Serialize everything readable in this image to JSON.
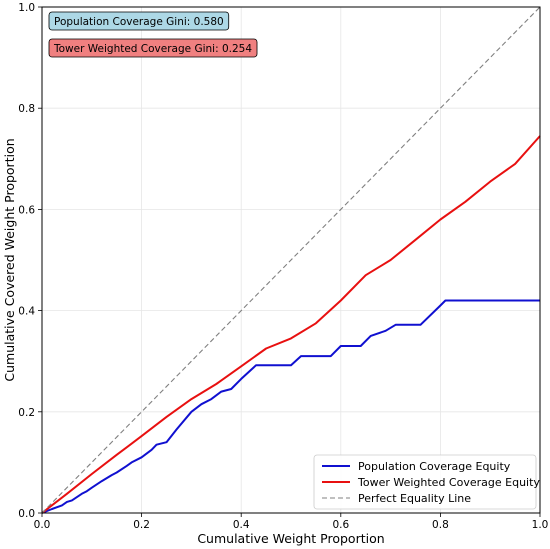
{
  "chart_data": {
    "type": "line",
    "xlabel": "Cumulative Weight Proportion",
    "ylabel": "Cumulative Covered Weight Proportion",
    "xlim": [
      0,
      1
    ],
    "ylim": [
      0,
      1
    ],
    "x_ticks": [
      "0.0",
      "0.2",
      "0.4",
      "0.6",
      "0.8",
      "1.0"
    ],
    "y_ticks": [
      "0.0",
      "0.2",
      "0.4",
      "0.6",
      "0.8",
      "1.0"
    ],
    "grid": true,
    "legend_position": "lower-right",
    "annotations": [
      {
        "text": "Population Coverage Gini: 0.580",
        "color": "#add8e6"
      },
      {
        "text": "Tower Weighted Coverage Gini: 0.254",
        "color": "#f08080"
      }
    ],
    "series": [
      {
        "name": "Population Coverage Equity",
        "color": "#1010d0",
        "style": "solid",
        "x": [
          0,
          0.02,
          0.04,
          0.05,
          0.06,
          0.08,
          0.09,
          0.1,
          0.12,
          0.14,
          0.15,
          0.17,
          0.18,
          0.2,
          0.22,
          0.23,
          0.25,
          0.27,
          0.3,
          0.32,
          0.34,
          0.36,
          0.38,
          0.4,
          0.43,
          0.5,
          0.52,
          0.58,
          0.6,
          0.64,
          0.66,
          0.69,
          0.71,
          0.76,
          0.8,
          0.81,
          1.0
        ],
        "y": [
          0,
          0.008,
          0.015,
          0.022,
          0.025,
          0.038,
          0.043,
          0.05,
          0.063,
          0.075,
          0.08,
          0.093,
          0.1,
          0.11,
          0.125,
          0.135,
          0.14,
          0.165,
          0.2,
          0.215,
          0.225,
          0.24,
          0.245,
          0.265,
          0.292,
          0.292,
          0.31,
          0.31,
          0.33,
          0.33,
          0.35,
          0.36,
          0.372,
          0.372,
          0.41,
          0.42,
          0.42
        ]
      },
      {
        "name": "Tower Weighted Coverage Equity",
        "color": "#e81010",
        "style": "solid",
        "x": [
          0,
          0.05,
          0.1,
          0.15,
          0.2,
          0.25,
          0.3,
          0.35,
          0.4,
          0.45,
          0.5,
          0.55,
          0.6,
          0.65,
          0.7,
          0.75,
          0.8,
          0.85,
          0.9,
          0.95,
          1.0
        ],
        "y": [
          0,
          0.038,
          0.077,
          0.115,
          0.152,
          0.19,
          0.225,
          0.255,
          0.29,
          0.325,
          0.345,
          0.375,
          0.42,
          0.47,
          0.5,
          0.54,
          0.58,
          0.615,
          0.655,
          0.69,
          0.745
        ]
      },
      {
        "name": "Perfect Equality Line",
        "color": "#808080",
        "style": "dashed",
        "x": [
          0,
          1
        ],
        "y": [
          0,
          1
        ]
      }
    ]
  }
}
